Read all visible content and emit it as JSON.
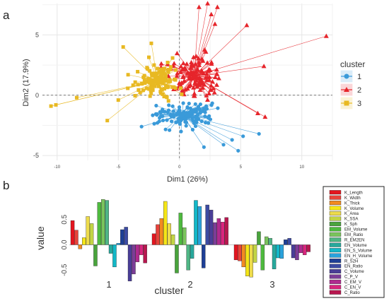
{
  "chart_data": [
    {
      "panel_label": "a",
      "type": "scatter",
      "xlabel": "Dim1 (26%)",
      "ylabel": "Dim2 (17.9%)",
      "xlim": [
        -11.2,
        12.5
      ],
      "ylim": [
        -5.4,
        7.6
      ],
      "x_ticks": [
        -10,
        -5,
        0,
        5,
        10
      ],
      "y_ticks": [
        -5,
        0,
        5
      ],
      "x_tick_labels": [
        "-10",
        "-5",
        "0",
        "5",
        "10"
      ],
      "y_tick_labels": [
        "-5",
        "0",
        "5"
      ],
      "grid": true,
      "legend": {
        "position": "right",
        "title": "cluster"
      },
      "series": [
        {
          "name": "1",
          "color": "#3a9ad9",
          "marker": "circle",
          "centroid": [
            0.2,
            -1.6
          ],
          "spread": [
            2.1,
            0.9
          ],
          "n": 120,
          "outliers": [
            [
              5.2,
              -3.4
            ],
            [
              6.5,
              -3.2
            ],
            [
              4.8,
              -4.6
            ],
            [
              2.0,
              -4.3
            ],
            [
              3.6,
              -4.1
            ],
            [
              -3.1,
              -2.6
            ],
            [
              4.3,
              -3.7
            ]
          ]
        },
        {
          "name": "2",
          "color": "#e6252b",
          "marker": "triangle",
          "centroid": [
            1.2,
            1.6
          ],
          "spread": [
            1.9,
            1.5
          ],
          "n": 120,
          "outliers": [
            [
              12.0,
              4.9
            ],
            [
              2.3,
              7.6
            ],
            [
              3.1,
              7.3
            ],
            [
              2.6,
              6.7
            ],
            [
              2.9,
              5.9
            ],
            [
              6.9,
              2.4
            ],
            [
              5.5,
              5.8
            ],
            [
              6.4,
              -1.5
            ],
            [
              7.0,
              -1.8
            ],
            [
              1.6,
              7.3
            ]
          ]
        },
        {
          "name": "3",
          "color": "#e8b923",
          "marker": "square",
          "centroid": [
            -1.8,
            1.2
          ],
          "spread": [
            1.6,
            1.3
          ],
          "n": 120,
          "outliers": [
            [
              -10.5,
              -0.9
            ],
            [
              -10.1,
              -0.8
            ],
            [
              -8.4,
              -0.2
            ],
            [
              -4.6,
              4.0
            ],
            [
              -5.9,
              -2.1
            ],
            [
              -2.3,
              4.3
            ],
            [
              -5.0,
              -0.4
            ],
            [
              -4.2,
              1.7
            ]
          ]
        }
      ]
    },
    {
      "panel_label": "b",
      "type": "bar",
      "xlabel": "cluster",
      "ylabel": "value",
      "ylim": [
        -0.68,
        1.0
      ],
      "y_ticks": [
        -0.5,
        0.0,
        0.5
      ],
      "y_tick_labels": [
        "-0.5",
        "0.0",
        "0.5"
      ],
      "categories": [
        "1",
        "2",
        "3"
      ],
      "legend": {
        "position": "right"
      },
      "series": [
        {
          "name": "K_Length",
          "color": "#e3151f",
          "values": [
            0.48,
            0.22,
            -0.3
          ]
        },
        {
          "name": "K_Width",
          "color": "#e8433a",
          "values": [
            0.29,
            0.4,
            -0.32
          ]
        },
        {
          "name": "K_Thick",
          "color": "#f28a20",
          "values": [
            -0.08,
            0.52,
            -0.44
          ]
        },
        {
          "name": "K_Volume",
          "color": "#f5e616",
          "values": [
            0.14,
            0.86,
            -0.62
          ]
        },
        {
          "name": "K_Area",
          "color": "#eedc4c",
          "values": [
            0.56,
            0.42,
            -0.64
          ]
        },
        {
          "name": "K_SSA",
          "color": "#c3d544",
          "values": [
            0.42,
            0.2,
            -0.35
          ]
        },
        {
          "name": "K_Sph",
          "color": "#49a43c",
          "values": [
            -0.42,
            -0.56,
            0.26
          ]
        },
        {
          "name": "EM_Volume",
          "color": "#4eba3e",
          "values": [
            0.84,
            0.63,
            -0.5
          ]
        },
        {
          "name": "EM_Ratio",
          "color": "#7ac45c",
          "values": [
            0.9,
            0.34,
            0.16
          ]
        },
        {
          "name": "R_EM2EN",
          "color": "#4fb685",
          "values": [
            0.88,
            -0.5,
            0.13
          ]
        },
        {
          "name": "EN_Volume",
          "color": "#28a89c",
          "values": [
            -0.17,
            -0.27,
            -0.48
          ]
        },
        {
          "name": "EN_S_Volume",
          "color": "#12b8c8",
          "values": [
            -0.44,
            0.88,
            -0.26
          ]
        },
        {
          "name": "EN_H_Volume",
          "color": "#29a2dc",
          "values": [
            0.03,
            0.76,
            -0.27
          ]
        },
        {
          "name": "R_S2H",
          "color": "#1e3f96",
          "values": [
            0.3,
            -0.46,
            0.1
          ]
        },
        {
          "name": "EN_Ratio",
          "color": "#3c4ba3",
          "values": [
            0.35,
            0.79,
            0.13
          ]
        },
        {
          "name": "C_Volume",
          "color": "#4a3e98",
          "values": [
            -0.72,
            0.69,
            -0.26
          ]
        },
        {
          "name": "C_P_V",
          "color": "#7b3d97",
          "values": [
            -0.58,
            0.44,
            -0.3
          ]
        },
        {
          "name": "C_EM_V",
          "color": "#b02a8f",
          "values": [
            -0.34,
            0.52,
            -0.16
          ]
        },
        {
          "name": "C_EN_V",
          "color": "#d8257d",
          "values": [
            -0.2,
            0.45,
            -0.2
          ]
        },
        {
          "name": "C_Ratio",
          "color": "#b8174f",
          "values": [
            -0.36,
            0.54,
            -0.14
          ]
        }
      ]
    }
  ]
}
